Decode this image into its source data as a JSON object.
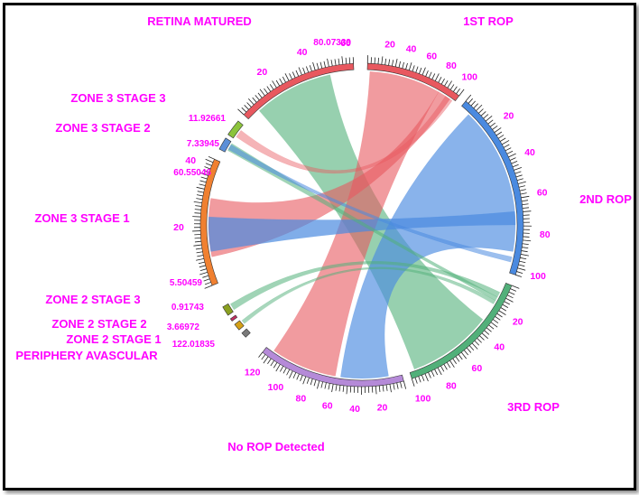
{
  "chart_data": {
    "type": "chord",
    "title": "",
    "label_color": "#ff00ff",
    "segments": [
      {
        "name": "1ST ROP",
        "color": "#e8585f",
        "ticks": [
          "20",
          "40",
          "60",
          "80",
          "100"
        ]
      },
      {
        "name": "2ND ROP",
        "color": "#4a8ae0",
        "ticks": [
          "20",
          "40",
          "60",
          "80",
          "100"
        ]
      },
      {
        "name": "3RD ROP",
        "color": "#52b07a",
        "ticks": [
          "20",
          "40",
          "60",
          "80",
          "100"
        ]
      },
      {
        "name": "No ROP Detected",
        "color": "#b58ad8",
        "ticks": [
          "20",
          "40",
          "60",
          "80",
          "100",
          "120"
        ]
      },
      {
        "name": "PERIPHERY AVASCULAR",
        "color": "#7a7a7a",
        "value_label": "122.01835"
      },
      {
        "name": "ZONE 2 STAGE 1",
        "color": "#d4a017",
        "value_label": "3.66972"
      },
      {
        "name": "ZONE 2 STAGE 2",
        "color": "#c03060",
        "value_label": "0.91743"
      },
      {
        "name": "ZONE 2 STAGE 3",
        "color": "#8aa020",
        "value_label": "5.50459"
      },
      {
        "name": "ZONE 3 STAGE 1",
        "color": "#f08030",
        "value_label": "60.55046",
        "ticks": [
          "20",
          "40"
        ]
      },
      {
        "name": "ZONE 3 STAGE 2",
        "color": "#5b8fd8",
        "value_label": "7.33945"
      },
      {
        "name": "ZONE 3 STAGE 3",
        "color": "#8cc43c",
        "value_label": "11.92661"
      },
      {
        "name": "RETINA MATURED",
        "color": "#e8585f",
        "value_label": "80.07339",
        "ticks": [
          "20",
          "40",
          "60"
        ]
      }
    ]
  }
}
